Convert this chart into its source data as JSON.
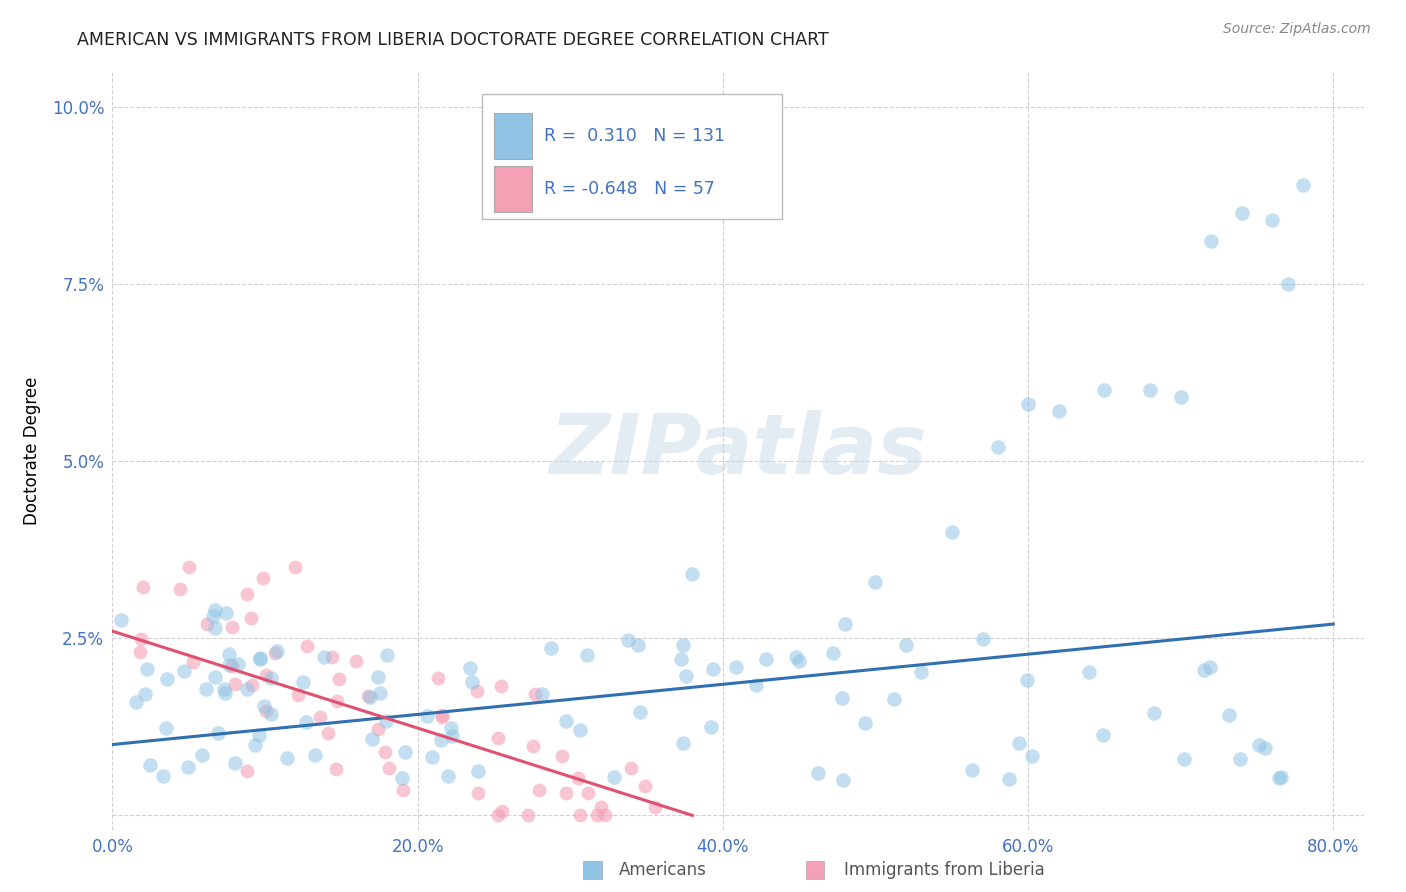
{
  "title": "AMERICAN VS IMMIGRANTS FROM LIBERIA DOCTORATE DEGREE CORRELATION CHART",
  "source": "Source: ZipAtlas.com",
  "ylabel": "Doctorate Degree",
  "xlim": [
    0.0,
    0.82
  ],
  "ylim": [
    -0.002,
    0.105
  ],
  "xticks": [
    0.0,
    0.2,
    0.4,
    0.6,
    0.8
  ],
  "xtick_labels": [
    "0.0%",
    "20.0%",
    "40.0%",
    "60.0%",
    "80.0%"
  ],
  "yticks": [
    0.0,
    0.025,
    0.05,
    0.075,
    0.1
  ],
  "ytick_labels": [
    "",
    "2.5%",
    "5.0%",
    "7.5%",
    "10.0%"
  ],
  "americans_color": "#90c4e4",
  "liberia_color": "#f4a0b5",
  "americans_line_color": "#3070b0",
  "liberia_line_color": "#e05070",
  "R_americans": 0.31,
  "N_americans": 131,
  "R_liberia": -0.648,
  "N_liberia": 57,
  "watermark": "ZIPatlas",
  "background_color": "#ffffff",
  "grid_color": "#cccccc",
  "am_line_x0": 0.0,
  "am_line_y0": 0.01,
  "am_line_x1": 0.8,
  "am_line_y1": 0.027,
  "lib_line_x0": 0.0,
  "lib_line_y0": 0.026,
  "lib_line_x1": 0.38,
  "lib_line_y1": 0.0
}
